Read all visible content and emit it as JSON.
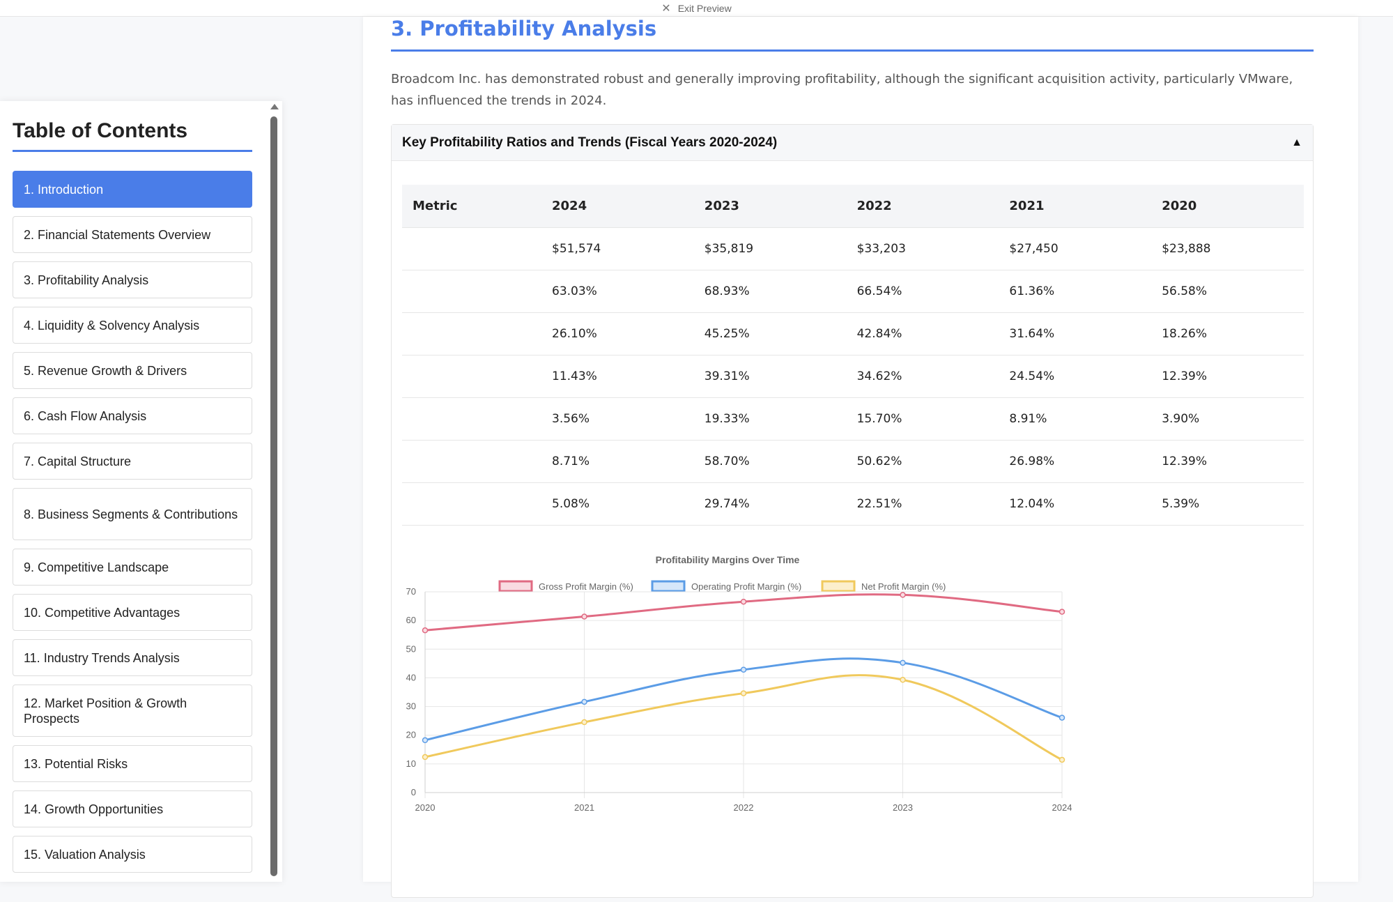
{
  "topbar": {
    "exit_label": "Exit Preview",
    "close_icon": "close-icon"
  },
  "toc": {
    "title": "Table of Contents",
    "items": [
      {
        "label": "1. Introduction",
        "active": true
      },
      {
        "label": "2. Financial Statements Overview"
      },
      {
        "label": "3. Profitability Analysis"
      },
      {
        "label": "4. Liquidity & Solvency Analysis"
      },
      {
        "label": "5. Revenue Growth & Drivers"
      },
      {
        "label": "6. Cash Flow Analysis"
      },
      {
        "label": "7. Capital Structure"
      },
      {
        "label": "8. Business Segments & Contributions"
      },
      {
        "label": "9. Competitive Landscape"
      },
      {
        "label": "10. Competitive Advantages"
      },
      {
        "label": "11. Industry Trends Analysis"
      },
      {
        "label": "12. Market Position & Growth Prospects"
      },
      {
        "label": "13. Potential Risks"
      },
      {
        "label": "14. Growth Opportunities"
      },
      {
        "label": "15. Valuation Analysis"
      }
    ]
  },
  "section": {
    "title": "3. Profitability Analysis",
    "intro": "Broadcom Inc. has demonstrated robust and generally improving profitability, although the significant acquisition activity, particularly VMware, has influenced the trends in 2024."
  },
  "card": {
    "header": "Key Profitability Ratios and Trends (Fiscal Years 2020-2024)",
    "toggle": "▲"
  },
  "table": {
    "headers": [
      "Metric",
      "2024",
      "2023",
      "2022",
      "2021",
      "2020"
    ],
    "rows": [
      [
        "",
        "$51,574",
        "$35,819",
        "$33,203",
        "$27,450",
        "$23,888"
      ],
      [
        "",
        "63.03%",
        "68.93%",
        "66.54%",
        "61.36%",
        "56.58%"
      ],
      [
        "",
        "26.10%",
        "45.25%",
        "42.84%",
        "31.64%",
        "18.26%"
      ],
      [
        "",
        "11.43%",
        "39.31%",
        "34.62%",
        "24.54%",
        "12.39%"
      ],
      [
        "",
        "3.56%",
        "19.33%",
        "15.70%",
        "8.91%",
        "3.90%"
      ],
      [
        "",
        "8.71%",
        "58.70%",
        "50.62%",
        "26.98%",
        "12.39%"
      ],
      [
        "",
        "5.08%",
        "29.74%",
        "22.51%",
        "12.04%",
        "5.39%"
      ]
    ]
  },
  "chart_data": {
    "type": "line",
    "title": "Profitability Margins Over Time",
    "x": [
      "2020",
      "2021",
      "2022",
      "2023",
      "2024"
    ],
    "ylim": [
      0,
      70
    ],
    "yticks": [
      0,
      10,
      20,
      30,
      40,
      50,
      60,
      70
    ],
    "grid": true,
    "legend": "top",
    "series": [
      {
        "name": "Gross Profit Margin (%)",
        "color": "#e06a82",
        "fill": "#f9dbe1",
        "values": [
          56.58,
          61.36,
          66.54,
          68.93,
          63.03
        ]
      },
      {
        "name": "Operating Profit Margin (%)",
        "color": "#5b9ce6",
        "fill": "#d6e7fa",
        "values": [
          18.26,
          31.64,
          42.84,
          45.25,
          26.1
        ]
      },
      {
        "name": "Net Profit Margin (%)",
        "color": "#f0c95c",
        "fill": "#fcefcc",
        "values": [
          12.39,
          24.54,
          34.62,
          39.31,
          11.43
        ]
      }
    ]
  }
}
